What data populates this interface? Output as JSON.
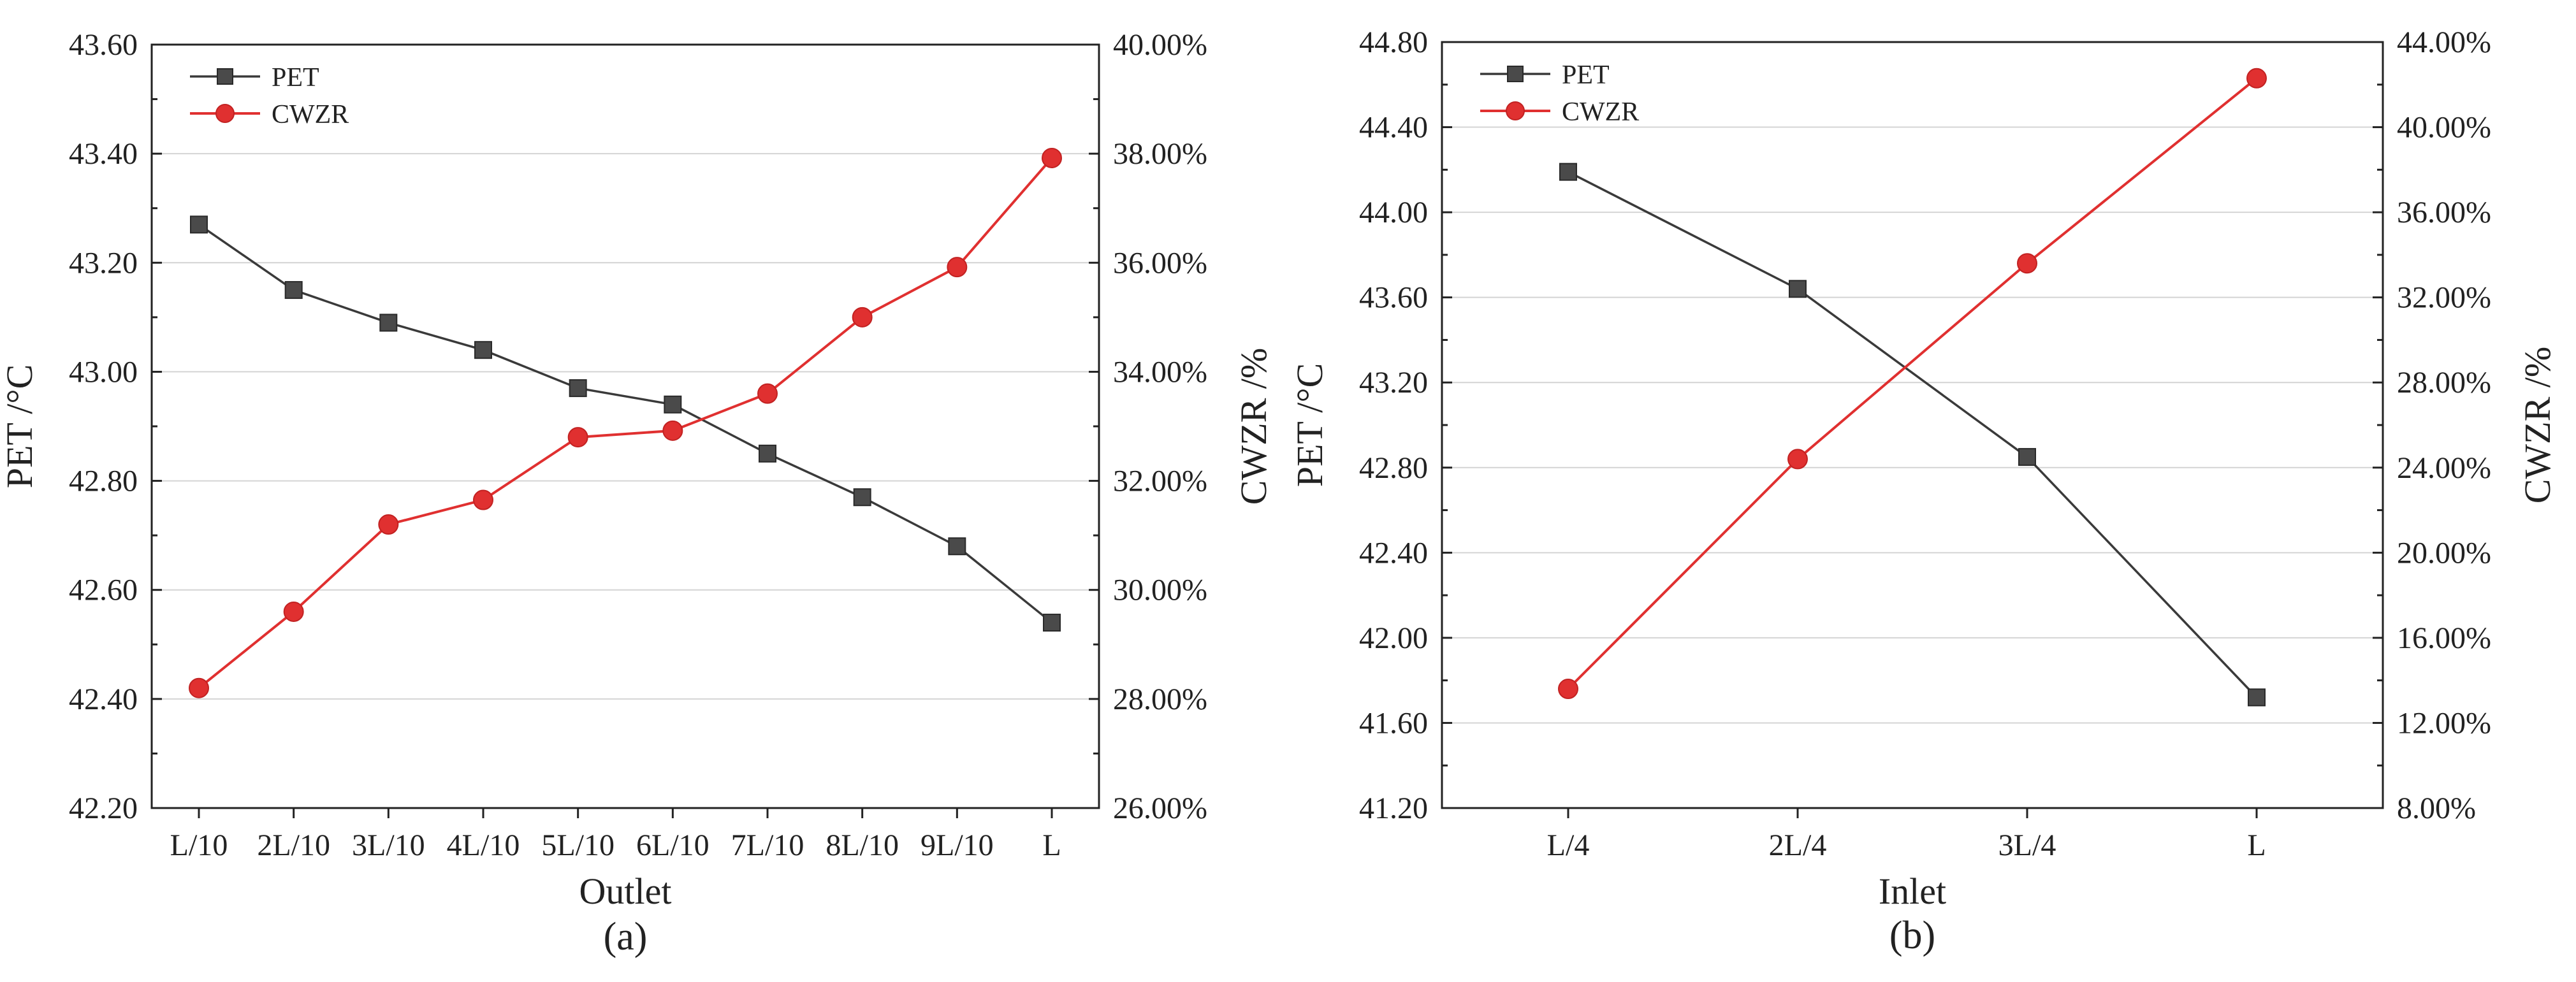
{
  "chart_data": [
    {
      "type": "line",
      "panel": "(a)",
      "xlabel": "Outlet",
      "ylabel_left": "PET /°C",
      "ylabel_right": "CWZR /%",
      "categories": [
        "L/10",
        "2L/10",
        "3L/10",
        "4L/10",
        "5L/10",
        "6L/10",
        "7L/10",
        "8L/10",
        "9L/10",
        "L"
      ],
      "y_left": {
        "min": 42.2,
        "max": 43.6,
        "ticks": [
          "42.20",
          "42.40",
          "42.60",
          "42.80",
          "43.00",
          "43.20",
          "43.40",
          "43.60"
        ]
      },
      "y_right": {
        "min": 26,
        "max": 40,
        "ticks": [
          "26.00%",
          "28.00%",
          "30.00%",
          "32.00%",
          "34.00%",
          "36.00%",
          "38.00%",
          "40.00%"
        ]
      },
      "grid": true,
      "legend_position": "top-left",
      "series": [
        {
          "name": "PET",
          "axis": "left",
          "marker": "square",
          "color": "#3a3a3a",
          "values": [
            43.27,
            43.15,
            43.09,
            43.04,
            42.97,
            42.94,
            42.85,
            42.77,
            42.68,
            42.54
          ]
        },
        {
          "name": "CWZR",
          "axis": "right",
          "marker": "circle",
          "color": "#e03030",
          "values": [
            28.2,
            29.6,
            31.2,
            31.65,
            32.8,
            32.92,
            33.6,
            35.0,
            35.92,
            37.92
          ]
        }
      ]
    },
    {
      "type": "line",
      "panel": "(b)",
      "xlabel": "Inlet",
      "ylabel_left": "PET /°C",
      "ylabel_right": "CWZR /%",
      "categories": [
        "L/4",
        "2L/4",
        "3L/4",
        "L"
      ],
      "y_left": {
        "min": 41.2,
        "max": 44.8,
        "ticks": [
          "41.20",
          "41.60",
          "42.00",
          "42.40",
          "42.80",
          "43.20",
          "43.60",
          "44.00",
          "44.40",
          "44.80"
        ]
      },
      "y_right": {
        "min": 8,
        "max": 44,
        "ticks": [
          "8.00%",
          "12.00%",
          "16.00%",
          "20.00%",
          "24.00%",
          "28.00%",
          "32.00%",
          "36.00%",
          "40.00%",
          "44.00%"
        ]
      },
      "grid": true,
      "legend_position": "top-left",
      "series": [
        {
          "name": "PET",
          "axis": "left",
          "marker": "square",
          "color": "#3a3a3a",
          "values": [
            44.19,
            43.64,
            42.85,
            41.72
          ]
        },
        {
          "name": "CWZR",
          "axis": "right",
          "marker": "circle",
          "color": "#e03030",
          "values": [
            13.6,
            24.4,
            33.6,
            42.3
          ]
        }
      ]
    }
  ],
  "captions": [
    "(a)",
    "(b)"
  ]
}
